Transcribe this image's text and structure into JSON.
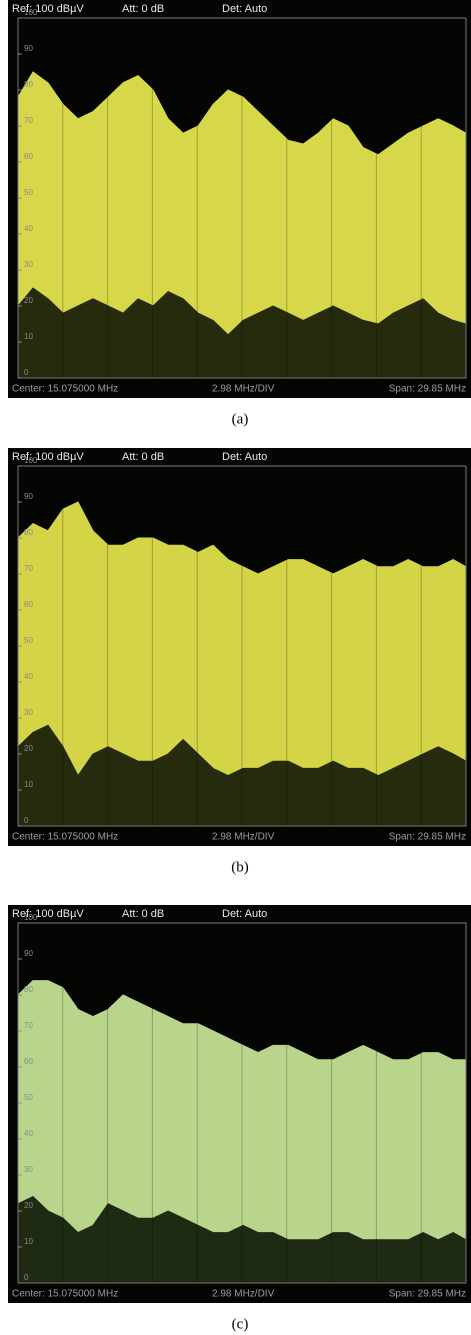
{
  "chart_data": [
    {
      "type": "area",
      "caption": "(a)",
      "ref_label": "Ref: 100 dBµV",
      "att_label": "Att: 0 dB",
      "det_label": "Det: Auto",
      "center_label": "Center: 15.075000 MHz",
      "div_label": "2.98 MHz/DIV",
      "span_label": "Span: 29.85 MHz",
      "xlim": [
        0.15,
        30
      ],
      "ylim": [
        0,
        100
      ],
      "yticks": [
        0,
        10,
        20,
        30,
        40,
        50,
        60,
        70,
        80,
        90,
        100
      ],
      "x": [
        0.15,
        1.15,
        2.15,
        3.15,
        4.15,
        5.15,
        6.15,
        7.15,
        8.15,
        9.15,
        10.15,
        11.15,
        12.15,
        13.15,
        14.15,
        15.15,
        16.15,
        17.15,
        18.15,
        19.15,
        20.15,
        21.15,
        22.15,
        23.15,
        24.15,
        25.15,
        26.15,
        27.15,
        28.15,
        29.15,
        30
      ],
      "series": [
        {
          "color": "#d6d84a",
          "values": [
            78,
            85,
            82,
            76,
            72,
            74,
            78,
            82,
            84,
            80,
            72,
            68,
            70,
            76,
            80,
            78,
            74,
            70,
            66,
            65,
            68,
            72,
            70,
            64,
            62,
            65,
            68,
            70,
            72,
            70,
            68
          ]
        },
        {
          "color": "#262b0e",
          "values": [
            20,
            25,
            22,
            18,
            20,
            22,
            20,
            18,
            22,
            20,
            24,
            22,
            18,
            16,
            12,
            16,
            18,
            20,
            18,
            16,
            18,
            20,
            18,
            16,
            15,
            18,
            20,
            22,
            18,
            16,
            15
          ]
        }
      ]
    },
    {
      "type": "area",
      "caption": "(b)",
      "ref_label": "Ref: 100 dBµV",
      "att_label": "Att: 0 dB",
      "det_label": "Det: Auto",
      "center_label": "Center: 15.075000 MHz",
      "div_label": "2.98 MHz/DIV",
      "span_label": "Span: 29.85 MHz",
      "xlim": [
        0.15,
        30
      ],
      "ylim": [
        0,
        100
      ],
      "yticks": [
        0,
        10,
        20,
        30,
        40,
        50,
        60,
        70,
        80,
        90,
        100
      ],
      "x": [
        0.15,
        1.15,
        2.15,
        3.15,
        4.15,
        5.15,
        6.15,
        7.15,
        8.15,
        9.15,
        10.15,
        11.15,
        12.15,
        13.15,
        14.15,
        15.15,
        16.15,
        17.15,
        18.15,
        19.15,
        20.15,
        21.15,
        22.15,
        23.15,
        24.15,
        25.15,
        26.15,
        27.15,
        28.15,
        29.15,
        30
      ],
      "series": [
        {
          "color": "#d3d446",
          "values": [
            80,
            84,
            82,
            88,
            90,
            82,
            78,
            78,
            80,
            80,
            78,
            78,
            76,
            78,
            74,
            72,
            70,
            72,
            74,
            74,
            72,
            70,
            72,
            74,
            72,
            72,
            74,
            72,
            72,
            74,
            72
          ]
        },
        {
          "color": "#262b0e",
          "values": [
            22,
            26,
            28,
            22,
            14,
            20,
            22,
            20,
            18,
            18,
            20,
            24,
            20,
            16,
            14,
            16,
            16,
            18,
            18,
            16,
            16,
            18,
            16,
            16,
            14,
            16,
            18,
            20,
            22,
            20,
            18
          ]
        }
      ]
    },
    {
      "type": "area",
      "caption": "(c)",
      "ref_label": "Ref: 100 dBµV",
      "att_label": "Att: 0 dB",
      "det_label": "Det: Auto",
      "center_label": "Center: 15.075000 MHz",
      "div_label": "2.98 MHz/DIV",
      "span_label": "Span: 29.85 MHz",
      "xlim": [
        0.15,
        30
      ],
      "ylim": [
        0,
        100
      ],
      "yticks": [
        0,
        10,
        20,
        30,
        40,
        50,
        60,
        70,
        80,
        90,
        100
      ],
      "x": [
        0.15,
        1.15,
        2.15,
        3.15,
        4.15,
        5.15,
        6.15,
        7.15,
        8.15,
        9.15,
        10.15,
        11.15,
        12.15,
        13.15,
        14.15,
        15.15,
        16.15,
        17.15,
        18.15,
        19.15,
        20.15,
        21.15,
        22.15,
        23.15,
        24.15,
        25.15,
        26.15,
        27.15,
        28.15,
        29.15,
        30
      ],
      "series": [
        {
          "color": "#b9d58c",
          "values": [
            80,
            84,
            84,
            82,
            76,
            74,
            76,
            80,
            78,
            76,
            74,
            72,
            72,
            70,
            68,
            66,
            64,
            66,
            66,
            64,
            62,
            62,
            64,
            66,
            64,
            62,
            62,
            64,
            64,
            62,
            62
          ]
        },
        {
          "color": "#1f2a12",
          "values": [
            22,
            24,
            20,
            18,
            14,
            16,
            22,
            20,
            18,
            18,
            20,
            18,
            16,
            14,
            14,
            16,
            14,
            14,
            12,
            12,
            12,
            14,
            14,
            12,
            12,
            12,
            12,
            14,
            12,
            14,
            12
          ]
        }
      ]
    }
  ]
}
